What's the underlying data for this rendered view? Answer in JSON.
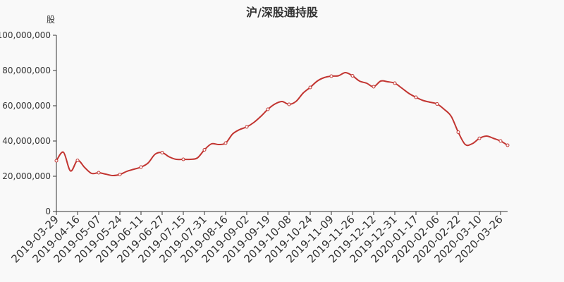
{
  "chart_data": {
    "type": "line",
    "title": "沪/深股通持股",
    "ylabel": "股",
    "ylim": [
      0,
      100000000
    ],
    "yticks": [
      0,
      20000000,
      40000000,
      60000000,
      80000000,
      100000000
    ],
    "ytick_labels": [
      "0",
      "20,000,000",
      "40,000,000",
      "60,000,000",
      "80,000,000",
      "100,000,000"
    ],
    "xtick_labels": [
      "2019-03-29",
      "2019-04-16",
      "2019-05-07",
      "2019-05-24",
      "2019-06-11",
      "2019-06-27",
      "2019-07-15",
      "2019-07-31",
      "2019-08-16",
      "2019-09-02",
      "2019-09-19",
      "2019-10-08",
      "2019-10-24",
      "2019-11-09",
      "2019-11-26",
      "2019-12-12",
      "2019-12-31",
      "2020-01-17",
      "2020-02-06",
      "2020-02-22",
      "2020-03-10",
      "2020-03-26"
    ],
    "grid": false,
    "color": "#c23531",
    "series": [
      {
        "values": [
          28.8,
          33.6,
          23,
          29,
          25,
          21.6,
          22,
          21.2,
          20.4,
          21,
          22.8,
          24,
          25.2,
          27.5,
          32.5,
          33.4,
          31,
          29.6,
          29.6,
          29.6,
          30.4,
          35,
          38.4,
          38,
          38.8,
          44,
          46.5,
          48,
          50.5,
          54,
          58,
          61,
          62.4,
          60.8,
          62.5,
          67.2,
          70.4,
          74,
          76,
          76.8,
          77,
          78.8,
          77,
          74,
          72.8,
          70.8,
          74,
          73.6,
          72.8,
          70,
          67,
          64.8,
          63,
          62,
          61,
          58,
          54,
          45,
          38,
          38.5,
          41.5,
          42.8,
          41.5,
          40,
          37.6
        ],
        "unit_multiplier": 1000000
      }
    ]
  }
}
